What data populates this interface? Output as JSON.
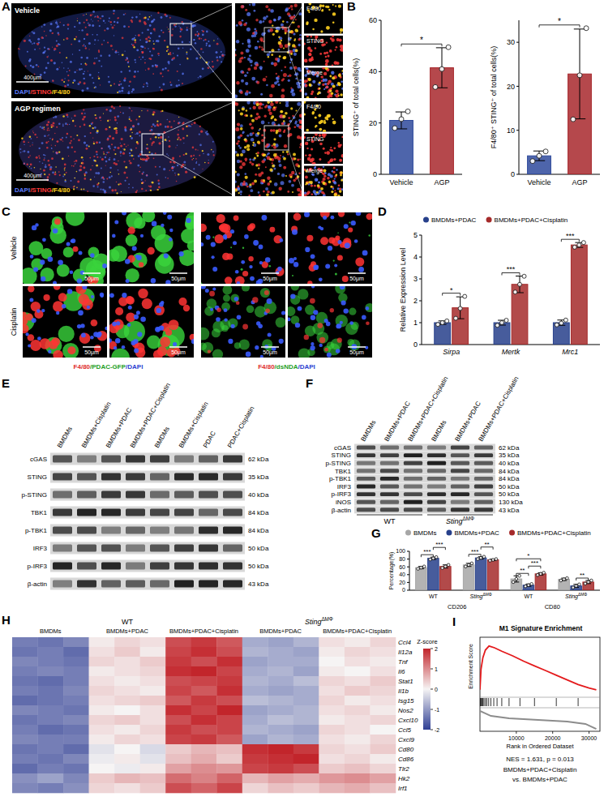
{
  "panel_A": {
    "label": "A",
    "conditions": [
      "Vehicle",
      "AGP regimen"
    ],
    "stain": [
      "DAPI",
      "/STING",
      "/F4/80"
    ],
    "scale_bar": "400μm",
    "insets": [
      "F4/80",
      "STING",
      "Merge"
    ]
  },
  "panel_C": {
    "label": "C",
    "conditions": [
      "Vehicle",
      "Cisplatin"
    ],
    "stains": [
      [
        "F4/80",
        "/PDAC-GFP",
        "/DAPI"
      ],
      [
        "F4/80",
        "/dsNDA",
        "/DAPI"
      ]
    ],
    "scale_bar": "50μm"
  },
  "panel_E": {
    "label": "E",
    "lanes": [
      "BMDMs",
      "BMDMs+Cisplatin",
      "BMDMs+PDAC",
      "BMDMs+PDAC+Cisplatin",
      "BMDMs",
      "BMDMs+Cisplatin",
      "PDAC",
      "PDAC+Cisplatin"
    ],
    "rows": [
      {
        "name": "cGAS",
        "kda": "62 kDa"
      },
      {
        "name": "STING",
        "kda": "35 kDa"
      },
      {
        "name": "p-STING",
        "kda": "40 kDa"
      },
      {
        "name": "TBK1",
        "kda": "84 kDa"
      },
      {
        "name": "p-TBK1",
        "kda": "84 kDa"
      },
      {
        "name": "IRF3",
        "kda": "50 kDa"
      },
      {
        "name": "p-IRF3",
        "kda": "50 kDa"
      },
      {
        "name": "β-actin",
        "kda": "43 kDa"
      }
    ]
  },
  "panel_F": {
    "label": "F",
    "lanes": [
      "BMDMs",
      "BMDMs+PDAC",
      "BMDMs+PDAC+Cisplatin",
      "BMDMs",
      "BMDMs+PDAC",
      "BMDMs+PDAC+Cisplatin"
    ],
    "genotypes": [
      [
        "WT"
      ],
      [
        "Sting",
        "ΔMΦ"
      ]
    ],
    "rows": [
      {
        "name": "cGAS",
        "kda": "62 kDa"
      },
      {
        "name": "STING",
        "kda": "35 kDa"
      },
      {
        "name": "p-STING",
        "kda": "40 kDa"
      },
      {
        "name": "TBK1",
        "kda": "84 kDa"
      },
      {
        "name": "p-TBK1",
        "kda": "84 kDa"
      },
      {
        "name": "IRF3",
        "kda": "50 kDa"
      },
      {
        "name": "p-IRF3",
        "kda": "50 kDa"
      },
      {
        "name": "iNOS",
        "kda": "130 kDa"
      },
      {
        "name": "β-actin",
        "kda": "43 kDa"
      }
    ]
  },
  "chart_data": [
    {
      "panel_label": "B",
      "type": "bar",
      "ylabel": "STING⁺ of total cells(%)",
      "categories": [
        "Vehicle",
        "AGP"
      ],
      "values": [
        21,
        41.5
      ],
      "errors": [
        3.3,
        7.8
      ],
      "points": [
        [
          18,
          21.5,
          24.5
        ],
        [
          34,
          41,
          49.5
        ]
      ],
      "colors": [
        "#2f4a9c",
        "#a8282d"
      ],
      "ylim": [
        0,
        60
      ],
      "yticks": [
        0,
        20,
        40,
        60
      ],
      "annotations": [
        {
          "text": "*",
          "from": 0,
          "to": 1
        }
      ]
    },
    {
      "type": "bar",
      "ylabel": "F4/80⁺ STING⁺ of total cells(%)",
      "categories": [
        "Vehicle",
        "AGP"
      ],
      "values": [
        4.2,
        22.8
      ],
      "errors": [
        1.1,
        10.2
      ],
      "points": [
        [
          3,
          4.2,
          5.2
        ],
        [
          12.5,
          22.5,
          33.2
        ]
      ],
      "colors": [
        "#2f4a9c",
        "#a8282d"
      ],
      "ylim": [
        0,
        35
      ],
      "yticks": [
        0,
        10,
        20,
        30
      ],
      "annotations": [
        {
          "text": "*",
          "from": 0,
          "to": 1
        }
      ]
    },
    {
      "panel_label": "D",
      "type": "bar",
      "ylabel": "Relative Expression Level",
      "categories": [
        "Sirpa",
        "Mertk",
        "Mrc1"
      ],
      "series": [
        {
          "name": "BMDMs+PDAC",
          "color": "#27408b",
          "values": [
            1,
            1,
            1
          ],
          "errors": [
            0.08,
            0.11,
            0.12
          ],
          "points": [
            [
              0.92,
              1.0,
              1.08
            ],
            [
              0.88,
              1.0,
              1.11
            ],
            [
              0.9,
              0.98,
              1.12
            ]
          ]
        },
        {
          "name": "BMDMs+PDAC+Cisplatin",
          "color": "#a52a2a",
          "values": [
            1.68,
            2.75,
            4.55
          ],
          "errors": [
            0.5,
            0.38,
            0.11
          ],
          "points": [
            [
              1.2,
              1.65,
              2.2
            ],
            [
              2.4,
              2.75,
              3.12
            ],
            [
              4.45,
              4.55,
              4.66
            ]
          ]
        }
      ],
      "ylim": [
        0,
        5
      ],
      "yticks": [
        0,
        1,
        2,
        3,
        4,
        5
      ],
      "legend": "top",
      "annotations": [
        {
          "text": "*",
          "category": 0,
          "from": 0,
          "to": 1
        },
        {
          "text": "***",
          "category": 1,
          "from": 0,
          "to": 1
        },
        {
          "text": "***",
          "category": 2,
          "from": 0,
          "to": 1
        }
      ]
    },
    {
      "panel_label": "G",
      "type": "bar",
      "ylabel": "Percentage(%)",
      "groups": [
        "CD206",
        "CD80"
      ],
      "group_of_category": [
        0,
        0,
        1,
        1
      ],
      "categories": [
        [
          "WT"
        ],
        [
          "Sting",
          "ΔMΦ"
        ],
        [
          "WT"
        ],
        [
          "Sting",
          "ΔMΦ"
        ]
      ],
      "series": [
        {
          "name": "BMDMs",
          "color": "#a6a6a6",
          "values": [
            58,
            65,
            29,
            28
          ],
          "errors": [
            3,
            4,
            8,
            3
          ],
          "points": [
            [
              55,
              58,
              61
            ],
            [
              61,
              65,
              69
            ],
            [
              21,
              29,
              37
            ],
            [
              25,
              28,
              31
            ]
          ]
        },
        {
          "name": "BMDMs+PDAC",
          "color": "#27408b",
          "values": [
            82,
            83,
            13,
            11
          ],
          "errors": [
            3,
            3,
            3,
            4
          ],
          "points": [
            [
              79,
              82,
              85
            ],
            [
              80,
              83,
              86
            ],
            [
              10,
              13,
              16
            ],
            [
              7,
              11,
              15
            ]
          ]
        },
        {
          "name": "BMDMs+PDAC+Cisplatin",
          "color": "#a52a2a",
          "values": [
            61,
            78,
            42,
            21
          ],
          "errors": [
            4,
            2,
            3,
            4
          ],
          "points": [
            [
              57,
              61,
              65
            ],
            [
              76,
              78,
              80
            ],
            [
              39,
              42,
              45
            ],
            [
              17,
              21,
              25
            ]
          ]
        }
      ],
      "ylim": [
        0,
        100
      ],
      "yticks": [
        0,
        20,
        40,
        60,
        80,
        100
      ],
      "legend": "top",
      "annotations": [
        {
          "text": "***",
          "category": 0,
          "from": 0,
          "to": 1
        },
        {
          "text": "***",
          "category": 0,
          "from": 1,
          "to": 2
        },
        {
          "text": "***",
          "category": 1,
          "from": 0,
          "to": 1
        },
        {
          "text": "**",
          "category": 1,
          "from": 1,
          "to": 2
        },
        {
          "text": "**",
          "category": 2,
          "from": 0,
          "to": 1
        },
        {
          "text": "***",
          "category": 2,
          "from": 1,
          "to": 2
        },
        {
          "text": "*",
          "category": 2,
          "from": 0,
          "to": 2
        },
        {
          "text": "**",
          "category": 3,
          "from": 1,
          "to": 2
        }
      ]
    },
    {
      "panel_label": "H",
      "type": "heatmap",
      "genotypes": [
        [
          "WT"
        ],
        [
          "Sting",
          "ΔMΦ"
        ]
      ],
      "group_genotype": [
        0,
        0,
        0,
        1,
        1
      ],
      "groups": [
        "BMDMs",
        "BMDMs+PDAC",
        "BMDMs+PDAC+Cisplatin",
        "BMDMs+PDAC",
        "BMDMs+PDAC+Cisplatin"
      ],
      "rows": [
        "Ccl4",
        "Il12a",
        "Tnf",
        "Il6",
        "Stat1",
        "Il1b",
        "Isg15",
        "Nos2",
        "Cxcl10",
        "Ccl5",
        "Cxcl9",
        "Cd80",
        "Cd86",
        "Tlr2",
        "Hk2",
        "Irf1"
      ],
      "values": [
        [
          -1.3,
          -1.4,
          -1.2,
          0.1,
          0.3,
          0.2,
          1.6,
          1.8,
          1.5,
          -0.8,
          -0.9,
          -0.7,
          0.2,
          0.1,
          0.3
        ],
        [
          -1.4,
          -1.3,
          -1.5,
          0.2,
          0.4,
          0.1,
          1.7,
          1.9,
          1.6,
          -0.7,
          -0.8,
          -0.9,
          0.1,
          0.3,
          0.2
        ],
        [
          -1.2,
          -1.3,
          -1.4,
          0.3,
          0.2,
          0.4,
          1.8,
          1.6,
          1.9,
          -0.9,
          -0.8,
          -0.8,
          0.0,
          0.2,
          0.1
        ],
        [
          -1.3,
          -1.2,
          -1.3,
          0.1,
          0.2,
          0.3,
          1.9,
          2.0,
          1.7,
          -0.8,
          -0.7,
          -0.9,
          0.1,
          0.0,
          0.2
        ],
        [
          -1.4,
          -1.5,
          -1.3,
          0.2,
          0.1,
          0.2,
          1.6,
          1.7,
          1.8,
          -0.7,
          -0.8,
          -0.6,
          0.3,
          0.2,
          0.4
        ],
        [
          -1.3,
          -1.4,
          -1.2,
          0.3,
          0.2,
          0.1,
          1.7,
          1.5,
          1.9,
          -0.8,
          -0.9,
          -0.8,
          0.2,
          0.4,
          0.3
        ],
        [
          -1.5,
          -1.4,
          -1.3,
          0.2,
          0.3,
          0.4,
          1.5,
          1.8,
          1.6,
          -0.6,
          -0.7,
          -0.8,
          0.3,
          0.1,
          0.2
        ],
        [
          -1.2,
          -1.3,
          -1.4,
          0.1,
          0.0,
          0.2,
          1.9,
          1.7,
          2.0,
          -0.9,
          -0.8,
          -0.7,
          0.2,
          0.3,
          0.1
        ],
        [
          -1.4,
          -1.3,
          -1.2,
          0.3,
          0.4,
          0.2,
          1.6,
          1.9,
          1.7,
          -0.8,
          -0.6,
          -0.7,
          0.1,
          0.2,
          0.3
        ],
        [
          -1.3,
          -1.5,
          -1.4,
          0.2,
          0.1,
          0.3,
          1.8,
          1.6,
          1.7,
          -0.7,
          -0.8,
          -0.9,
          0.3,
          0.2,
          0.0
        ],
        [
          -1.2,
          -1.3,
          -1.3,
          0.1,
          0.3,
          0.2,
          1.7,
          1.8,
          1.5,
          -0.9,
          -0.7,
          -0.8,
          0.2,
          0.1,
          0.3
        ],
        [
          -1.4,
          -1.3,
          -1.5,
          -0.2,
          0.0,
          -0.3,
          0.4,
          0.6,
          0.5,
          1.9,
          2.0,
          1.8,
          0.3,
          0.2,
          0.4
        ],
        [
          -1.3,
          -1.4,
          -1.2,
          -0.1,
          0.1,
          -0.2,
          0.5,
          0.7,
          0.4,
          1.8,
          1.9,
          2.0,
          0.2,
          0.3,
          0.1
        ],
        [
          -1.5,
          -1.3,
          -1.4,
          0.0,
          -0.1,
          0.1,
          0.8,
          1.0,
          0.9,
          1.7,
          1.8,
          1.6,
          0.4,
          0.5,
          0.3
        ],
        [
          -1.1,
          -0.9,
          -1.2,
          0.4,
          0.6,
          0.5,
          1.3,
          1.1,
          1.4,
          0.6,
          0.8,
          0.7,
          0.9,
          1.0,
          0.8
        ],
        [
          -1.2,
          -1.3,
          -1.1,
          0.3,
          0.2,
          0.4,
          1.6,
          1.4,
          1.7,
          0.3,
          0.5,
          0.4,
          0.6,
          0.7,
          0.5
        ]
      ],
      "colorbar": {
        "title": "Z-score",
        "range": [
          -2,
          2
        ],
        "ticks": [
          2,
          1,
          0,
          -1,
          -2
        ]
      }
    },
    {
      "panel_label": "I",
      "type": "line",
      "title": "M1 Signature Enrichment",
      "color": "#e41a1c",
      "x": [
        0,
        300,
        800,
        1500,
        2500,
        4000,
        6000,
        9000,
        12000,
        15000,
        18000,
        21000,
        24000,
        27000,
        30000,
        32000
      ],
      "values": [
        0,
        0.35,
        0.55,
        0.68,
        0.75,
        0.72,
        0.66,
        0.58,
        0.49,
        0.41,
        0.33,
        0.25,
        0.17,
        0.09,
        0.03,
        0
      ],
      "hits": [
        120,
        300,
        550,
        800,
        1100,
        1500,
        1900,
        2400,
        3000,
        3800,
        4700,
        6000,
        8000,
        11000,
        15000,
        21000,
        27000
      ],
      "metric_x": [
        0,
        3000,
        8000,
        16000,
        24000,
        29000,
        32000
      ],
      "metric": [
        1.6,
        0.7,
        0.3,
        0,
        -0.3,
        -0.7,
        -1.6
      ],
      "metric_lim": [
        -2,
        2
      ],
      "xlim": [
        0,
        33000
      ],
      "xticks": [
        10000,
        20000,
        30000
      ],
      "ylim": [
        -0.1,
        0.9
      ],
      "tick_labels": "x",
      "xlabel": "Rank in Ordered Dataset",
      "ylabel": "Enrichment Score",
      "stats": "NES = 1.631, p = 0.013",
      "comparison": [
        "BMDMs+PDAC+Cisplatin",
        "vs. BMDMs+PDAC"
      ]
    }
  ]
}
